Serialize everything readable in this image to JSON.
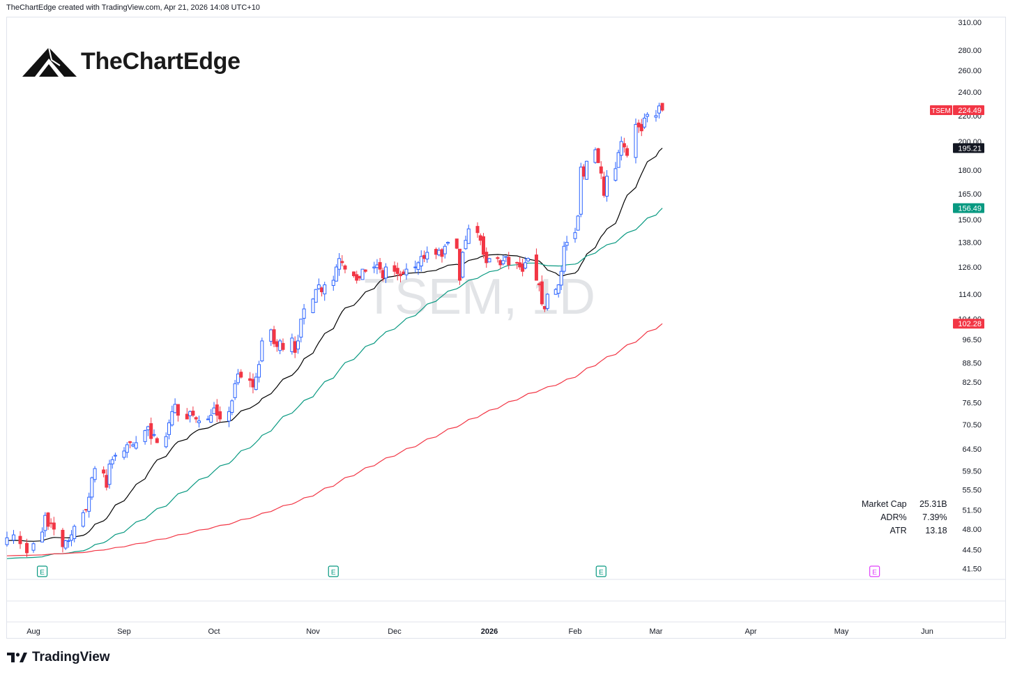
{
  "header": {
    "text": "TheChartEdge created with TradingView.com, Apr 21, 2026 14:08 UTC+10"
  },
  "logo": {
    "brand": "TheChartEdge"
  },
  "footer": {
    "brand": "TradingView"
  },
  "watermark": "TSEM, 1D",
  "stats": [
    {
      "label": "Market Cap",
      "value": "25.31B"
    },
    {
      "label": "ADR%",
      "value": "7.39%"
    },
    {
      "label": "ATR",
      "value": "13.18"
    }
  ],
  "colors": {
    "up": "#2962ff",
    "down": "#f23645",
    "ma_short": "#000000",
    "ma_mid": "#089981",
    "ma_long": "#f23645",
    "grid": "#e0e3eb"
  },
  "chart_data": {
    "type": "candlestick",
    "symbol": "TSEM",
    "interval": "1D",
    "scale": "log",
    "ylim": [
      40,
      315
    ],
    "y_ticks": [
      "310.00",
      "280.00",
      "260.00",
      "240.00",
      "220.00",
      "200.00",
      "180.00",
      "165.00",
      "150.00",
      "138.00",
      "126.00",
      "114.00",
      "104.00",
      "96.50",
      "88.50",
      "82.50",
      "76.50",
      "70.50",
      "64.50",
      "59.50",
      "55.50",
      "51.50",
      "48.00",
      "44.50",
      "41.50"
    ],
    "x_ticks": [
      "Aug",
      "Sep",
      "Oct",
      "Nov",
      "Dec",
      "2026",
      "Feb",
      "Mar",
      "Apr",
      "May",
      "Jun"
    ],
    "price_labels": [
      {
        "name": "TSEM",
        "value": "224.49",
        "color": "#f23645"
      },
      {
        "value": "195.21",
        "color": "#131722"
      },
      {
        "value": "156.49",
        "color": "#089981"
      },
      {
        "value": "102.28",
        "color": "#f23645"
      }
    ],
    "earnings_markers": [
      {
        "label": "E",
        "date": "Aug 4",
        "upcoming": false
      },
      {
        "label": "E",
        "date": "Nov 10",
        "upcoming": false
      },
      {
        "label": "E",
        "date": "Feb 11",
        "upcoming": false
      },
      {
        "label": "E",
        "date": "May 13",
        "upcoming": true
      }
    ],
    "closes": [
      46.5,
      47,
      45.5,
      44,
      45.5,
      47.5,
      50.5,
      48.5,
      49,
      48,
      45,
      46,
      46,
      47,
      48.5,
      51,
      51.5,
      54,
      58,
      60,
      59,
      56,
      61,
      62,
      63,
      64,
      65.5,
      66,
      65.5,
      66,
      69,
      70,
      67,
      68,
      66,
      67.5,
      71,
      74,
      76,
      73,
      72,
      74,
      73,
      72,
      71.5,
      72,
      73,
      75,
      73,
      72,
      74,
      77,
      82,
      85,
      84,
      83,
      81,
      84,
      88,
      96,
      100,
      95,
      94,
      96,
      93,
      97,
      92,
      96,
      104,
      108,
      112,
      116,
      118,
      115,
      118,
      120,
      126,
      130,
      128,
      125,
      122,
      120,
      121,
      125,
      124,
      126,
      127,
      125,
      121,
      126,
      124,
      123,
      122,
      123,
      125,
      126,
      128,
      131,
      130,
      133,
      132,
      134,
      131,
      136,
      138,
      135,
      120,
      133,
      139,
      145,
      143,
      139,
      132,
      128,
      130,
      130,
      127,
      129,
      131,
      127,
      128,
      126,
      124,
      128,
      130,
      120,
      118,
      110,
      108,
      114,
      116,
      118,
      124,
      136,
      138,
      143,
      152,
      182,
      176,
      186,
      194,
      185,
      178,
      164,
      176,
      181,
      192,
      200,
      196,
      190,
      213,
      211,
      208,
      218,
      221,
      220,
      228,
      224.49
    ],
    "series": [
      {
        "name": "",
        "color": "#000000",
        "start": 46,
        "end": 195.21
      },
      {
        "name": "",
        "color": "#089981",
        "start": 43,
        "end": 156.49
      },
      {
        "name": "",
        "color": "#f23645",
        "start": 43.5,
        "end": 102.28
      }
    ]
  }
}
